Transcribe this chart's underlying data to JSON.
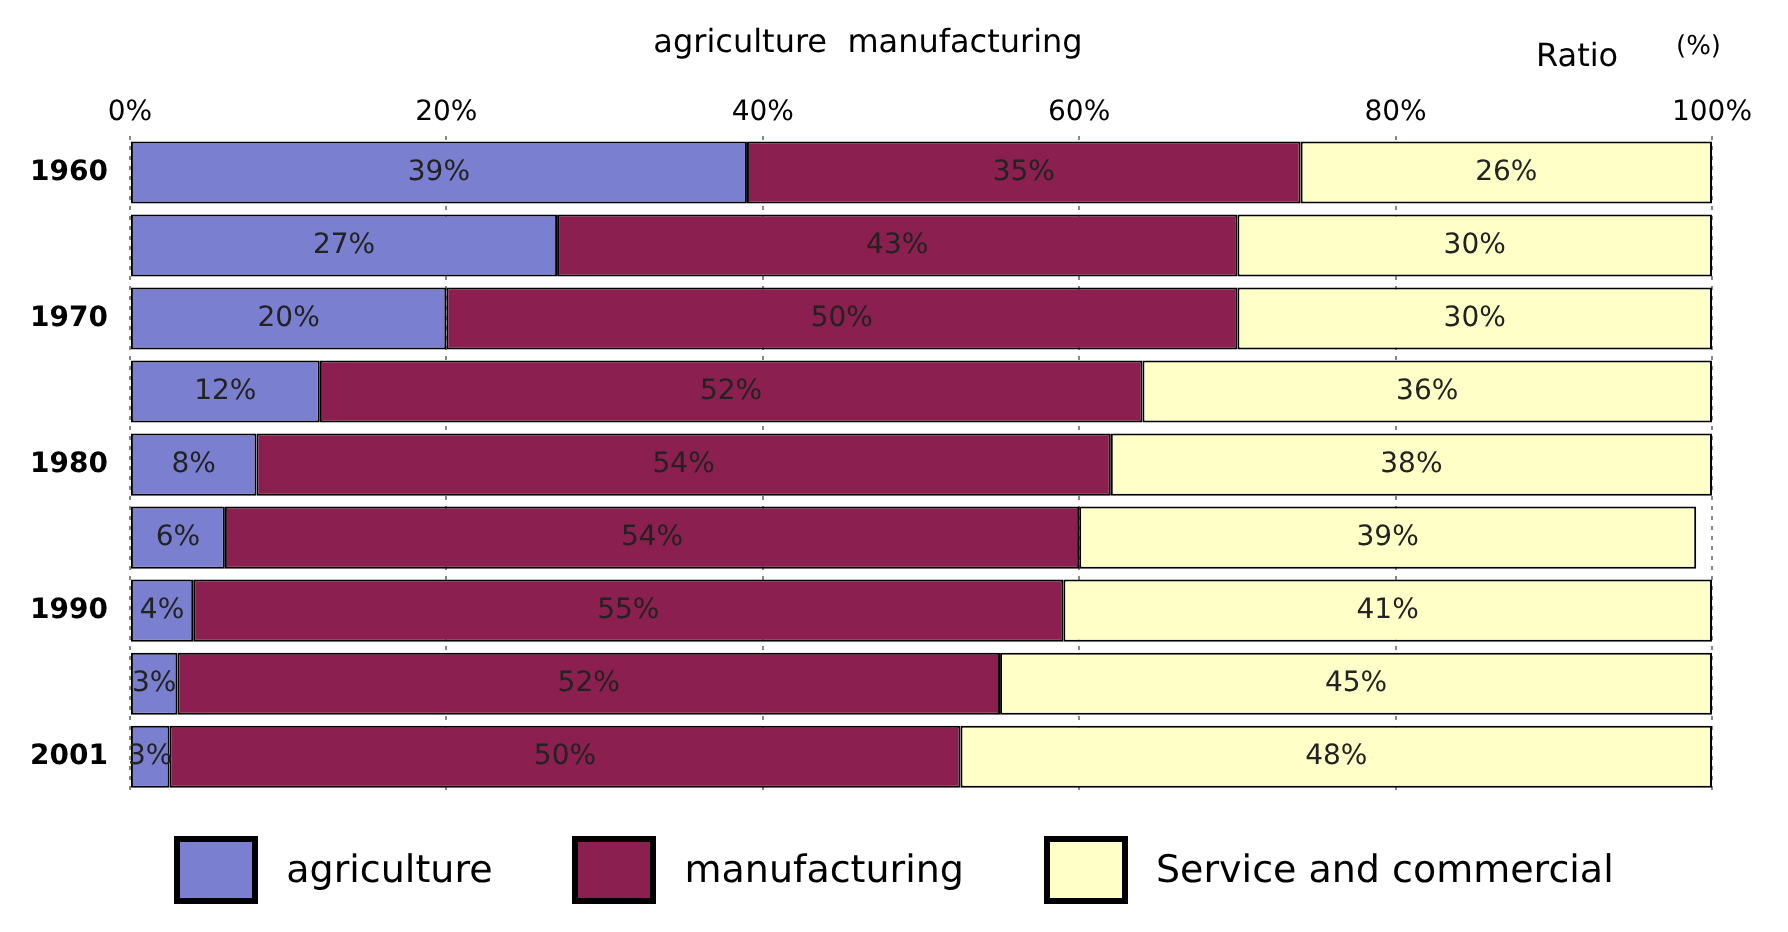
{
  "chart_data": {
    "type": "bar",
    "orientation": "horizontal",
    "stacked": true,
    "title": "agriculture  manufacturing",
    "annotations": [
      "Ratio",
      "(%)"
    ],
    "categories": [
      "1960",
      null,
      "1970",
      null,
      "1980",
      null,
      "1990",
      null,
      "2001"
    ],
    "series": [
      {
        "name": "agriculture",
        "color": "#7b7fd0",
        "values": [
          39,
          27,
          20,
          12,
          8,
          6,
          4,
          3,
          2.5
        ],
        "value_labels": [
          "39%",
          "27%",
          "20%",
          "12%",
          "8%",
          "6%",
          "4%",
          "3%",
          "3%"
        ]
      },
      {
        "name": "manufacturing",
        "color": "#8b1f4f",
        "values": [
          35,
          43,
          50,
          52,
          54,
          54,
          55,
          52,
          50
        ],
        "value_labels": [
          "35%",
          "43%",
          "50%",
          "52%",
          "54%",
          "54%",
          "55%",
          "52%",
          "50%"
        ]
      },
      {
        "name": "Service and commercial",
        "color": "#ffffc8",
        "values": [
          26,
          30,
          30,
          36,
          38,
          39,
          41,
          45,
          47.5
        ],
        "value_labels": [
          "26%",
          "30%",
          "30%",
          "36%",
          "38%",
          "39%",
          "41%",
          "45%",
          "48%"
        ]
      }
    ],
    "xlim": [
      0,
      100
    ],
    "xticks": [
      {
        "value": 0,
        "label": "0%"
      },
      {
        "value": 20,
        "label": "20%"
      },
      {
        "value": 40,
        "label": "40%"
      },
      {
        "value": 60,
        "label": "60%"
      },
      {
        "value": 80,
        "label": "80%"
      },
      {
        "value": 100,
        "label": "100%"
      }
    ],
    "grid": "x",
    "legend": "bottom"
  }
}
